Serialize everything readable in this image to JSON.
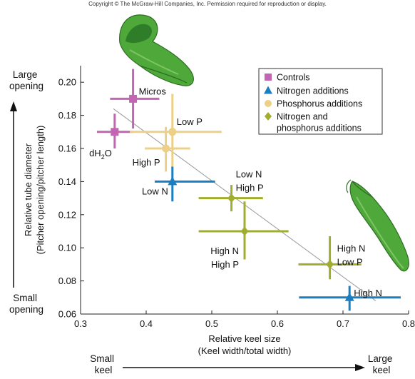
{
  "copyright": "Copyright © The McGraw-Hill Companies, Inc. Permission required for reproduction or display.",
  "corner_labels": {
    "large_opening": [
      "Large",
      "opening"
    ],
    "small_opening": [
      "Small",
      "opening"
    ],
    "small_keel": [
      "Small",
      "keel"
    ],
    "large_keel": [
      "Large",
      "keel"
    ]
  },
  "colors": {
    "controls": "#c266b4",
    "nitrogen": "#1a7fc1",
    "phosphorus": "#ecd088",
    "np": "#a0ad2e",
    "trend": "#9a9a9a"
  },
  "chart_data": {
    "type": "scatter",
    "xlabel": [
      "Relative keel size",
      "(Keel width/total width)"
    ],
    "ylabel": [
      "Relative tube diameter",
      "(Pitcher opening/pitcher length)"
    ],
    "xlim": [
      0.3,
      0.8
    ],
    "ylim": [
      0.06,
      0.21
    ],
    "x_ticks": [
      "0.3",
      "0.4",
      "0.5",
      "0.6",
      "0.7",
      "0.8"
    ],
    "y_ticks": [
      "0.06",
      "0.08",
      "0.10",
      "0.12",
      "0.14",
      "0.16",
      "0.18",
      "0.20"
    ],
    "legend": {
      "position": "top-right",
      "entries": [
        {
          "series": "controls",
          "marker": "square",
          "lines": [
            "Controls"
          ]
        },
        {
          "series": "nitrogen",
          "marker": "triangle",
          "lines": [
            "Nitrogen additions"
          ]
        },
        {
          "series": "phosphorus",
          "marker": "circle",
          "lines": [
            "Phosphorus additions"
          ]
        },
        {
          "series": "np",
          "marker": "diamond",
          "lines": [
            "Nitrogen and",
            "phosphorus additions"
          ]
        }
      ]
    },
    "trendline": {
      "x": [
        0.35,
        0.75
      ],
      "y": [
        0.184,
        0.068
      ]
    },
    "points": [
      {
        "series": "controls",
        "marker": "square",
        "label": [
          "Micros"
        ],
        "x": 0.38,
        "y": 0.19,
        "xerr": [
          0.345,
          0.42
        ],
        "yerr": [
          0.172,
          0.208
        ]
      },
      {
        "series": "controls",
        "marker": "square",
        "label": [
          "dH2O"
        ],
        "x": 0.352,
        "y": 0.17,
        "xerr": [
          0.325,
          0.38
        ],
        "yerr": [
          0.16,
          0.181
        ]
      },
      {
        "series": "phosphorus",
        "marker": "circle",
        "label": [
          "Low P"
        ],
        "x": 0.44,
        "y": 0.17,
        "xerr": [
          0.375,
          0.515
        ],
        "yerr": [
          0.148,
          0.193
        ]
      },
      {
        "series": "phosphorus",
        "marker": "circle",
        "label": [
          "High P"
        ],
        "x": 0.43,
        "y": 0.16,
        "xerr": [
          0.398,
          0.467
        ],
        "yerr": [
          0.146,
          0.173
        ]
      },
      {
        "series": "nitrogen",
        "marker": "triangle",
        "label": [
          "Low N"
        ],
        "x": 0.44,
        "y": 0.14,
        "xerr": [
          0.413,
          0.505
        ],
        "yerr": [
          0.128,
          0.149
        ]
      },
      {
        "series": "np",
        "marker": "diamond",
        "label": [
          "Low N",
          "High P"
        ],
        "x": 0.53,
        "y": 0.13,
        "xerr": [
          0.48,
          0.578
        ],
        "yerr": [
          0.122,
          0.138
        ]
      },
      {
        "series": "np",
        "marker": "diamond",
        "label": [
          "High N",
          "High P"
        ],
        "x": 0.55,
        "y": 0.11,
        "xerr": [
          0.48,
          0.617
        ],
        "yerr": [
          0.093,
          0.128
        ]
      },
      {
        "series": "np",
        "marker": "diamond",
        "label": [
          "High N",
          "Low P"
        ],
        "x": 0.68,
        "y": 0.09,
        "xerr": [
          0.632,
          0.728
        ],
        "yerr": [
          0.081,
          0.107
        ]
      },
      {
        "series": "nitrogen",
        "marker": "triangle",
        "label": [
          "High N"
        ],
        "x": 0.71,
        "y": 0.07,
        "xerr": [
          0.633,
          0.788
        ],
        "yerr": [
          0.062,
          0.077
        ]
      }
    ]
  }
}
